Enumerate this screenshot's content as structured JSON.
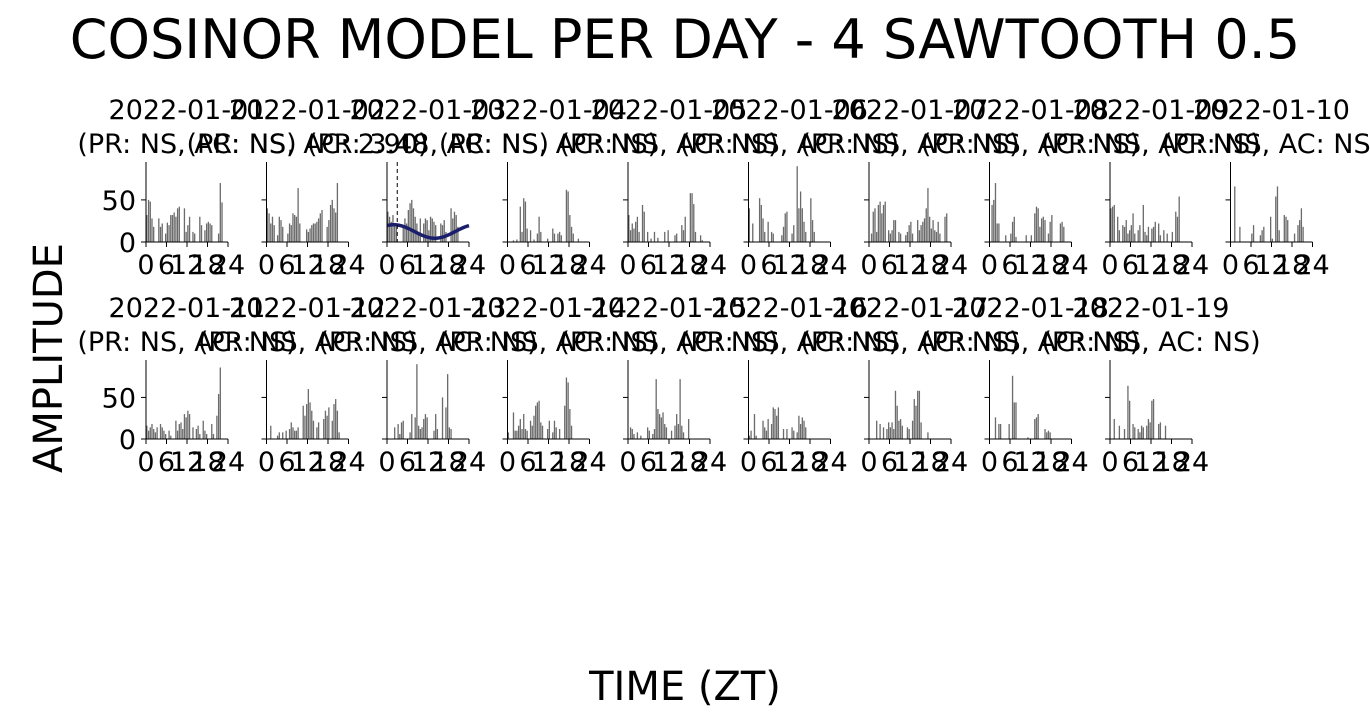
{
  "title": "COSINOR MODEL PER DAY - 4 SAWTOOTH 0.5",
  "xlabel": "TIME (ZT)",
  "ylabel": "AMPLITUDE",
  "colors": {
    "bars": "#6b6b6b",
    "fit": "#1b1f6b",
    "axis": "#000000"
  },
  "chart_data": {
    "type": "bar",
    "x_ticks": [
      "0",
      "6",
      "12",
      "18",
      "24"
    ],
    "y_ticks": [
      "0",
      "50"
    ],
    "xlim": [
      0,
      24
    ],
    "ylim": [
      0,
      95
    ],
    "bins_per_day": 48,
    "panels": [
      {
        "date": "2022-01-01",
        "subtitle": "(PR: NS, AC: NS)",
        "values": [
          32,
          50,
          48,
          28,
          18,
          0,
          0,
          28,
          18,
          22,
          0,
          10,
          23,
          20,
          32,
          32,
          35,
          30,
          40,
          42,
          0,
          0,
          40,
          12,
          20,
          30,
          0,
          12,
          10,
          0,
          0,
          30,
          20,
          0,
          14,
          22,
          24,
          22,
          20,
          0,
          0,
          0,
          10,
          70,
          47,
          0,
          0,
          0
        ]
      },
      {
        "date": "2022-01-02",
        "subtitle": "(PR: NS, AC: 2.90)",
        "values": [
          40,
          34,
          22,
          30,
          20,
          0,
          8,
          30,
          26,
          18,
          0,
          0,
          10,
          22,
          20,
          34,
          32,
          30,
          64,
          22,
          0,
          0,
          0,
          15,
          12,
          16,
          20,
          22,
          22,
          24,
          28,
          34,
          38,
          0,
          0,
          18,
          26,
          44,
          50,
          40,
          35,
          70,
          0,
          0,
          0,
          0,
          0,
          0
        ]
      },
      {
        "date": "2022-01-03",
        "subtitle": "(PR: 3.48, AC: NS)",
        "values": [
          36,
          30,
          24,
          32,
          22,
          18,
          0,
          0,
          0,
          20,
          28,
          22,
          38,
          46,
          50,
          40,
          30,
          22,
          10,
          28,
          0,
          22,
          28,
          26,
          14,
          30,
          28,
          24,
          20,
          0,
          0,
          22,
          20,
          26,
          12,
          0,
          0,
          40,
          28,
          36,
          32,
          18,
          0,
          0,
          0,
          0,
          0,
          0
        ],
        "fit": {
          "mesor": 12.5,
          "amplitude": 8,
          "acrophase": 2
        },
        "marker_x": 3
      },
      {
        "date": "2022-01-04",
        "subtitle": "(PR: NS, AC: NS)",
        "values": [
          0,
          0,
          0,
          2,
          0,
          3,
          0,
          42,
          12,
          52,
          48,
          16,
          0,
          14,
          0,
          3,
          0,
          10,
          30,
          12,
          0,
          0,
          0,
          4,
          0,
          0,
          16,
          10,
          0,
          10,
          12,
          8,
          0,
          0,
          62,
          60,
          32,
          18,
          10,
          0,
          0,
          4,
          0,
          0,
          0,
          0,
          0,
          0
        ]
      },
      {
        "date": "2022-01-05",
        "subtitle": "(PR: NS, AC: NS)",
        "values": [
          32,
          14,
          22,
          16,
          24,
          30,
          12,
          0,
          44,
          36,
          0,
          12,
          0,
          4,
          0,
          12,
          0,
          5,
          0,
          0,
          0,
          12,
          0,
          14,
          0,
          0,
          0,
          8,
          10,
          0,
          0,
          20,
          14,
          30,
          0,
          0,
          58,
          58,
          45,
          12,
          0,
          0,
          8,
          2,
          0,
          0,
          0,
          0
        ]
      },
      {
        "date": "2022-01-06",
        "subtitle": "(PR: NS, AC: NS)",
        "values": [
          40,
          0,
          22,
          0,
          0,
          0,
          52,
          44,
          28,
          12,
          0,
          24,
          0,
          12,
          10,
          0,
          0,
          0,
          0,
          8,
          18,
          34,
          36,
          0,
          0,
          10,
          20,
          0,
          90,
          40,
          60,
          40,
          24,
          12,
          0,
          0,
          52,
          26,
          12,
          0,
          0,
          0,
          0,
          0,
          0,
          0,
          0,
          0
        ]
      },
      {
        "date": "2022-01-07",
        "subtitle": "(PR: NS, AC: NS)",
        "values": [
          0,
          10,
          36,
          40,
          12,
          44,
          48,
          34,
          44,
          48,
          0,
          14,
          10,
          14,
          26,
          26,
          0,
          12,
          10,
          0,
          0,
          8,
          12,
          20,
          24,
          10,
          0,
          0,
          26,
          14,
          20,
          24,
          28,
          40,
          64,
          30,
          16,
          26,
          14,
          12,
          24,
          10,
          0,
          0,
          30,
          34,
          0,
          0
        ]
      },
      {
        "date": "2022-01-08",
        "subtitle": "(PR: NS, AC: NS)",
        "values": [
          0,
          44,
          50,
          70,
          22,
          22,
          0,
          0,
          0,
          8,
          0,
          0,
          10,
          24,
          30,
          6,
          0,
          0,
          0,
          0,
          0,
          8,
          0,
          0,
          8,
          0,
          34,
          42,
          40,
          18,
          28,
          30,
          26,
          0,
          10,
          24,
          32,
          0,
          0,
          0,
          0,
          22,
          24,
          18,
          0,
          0,
          0,
          0
        ]
      },
      {
        "date": "2022-01-09",
        "subtitle": "(PR: NS, AC: NS)",
        "values": [
          40,
          42,
          44,
          0,
          30,
          14,
          0,
          20,
          18,
          26,
          10,
          14,
          20,
          34,
          10,
          0,
          14,
          20,
          0,
          44,
          12,
          8,
          18,
          0,
          16,
          18,
          24,
          0,
          22,
          8,
          0,
          14,
          0,
          10,
          0,
          0,
          12,
          0,
          36,
          30,
          54,
          0,
          0,
          0,
          0,
          0,
          0,
          0
        ]
      },
      {
        "date": "2022-01-10",
        "subtitle": "(PR: NS, AC: NS)",
        "values": [
          0,
          0,
          66,
          0,
          0,
          18,
          0,
          0,
          0,
          0,
          0,
          0,
          10,
          20,
          0,
          0,
          0,
          8,
          14,
          18,
          0,
          0,
          0,
          30,
          4,
          0,
          54,
          66,
          14,
          0,
          0,
          32,
          30,
          26,
          0,
          0,
          0,
          10,
          0,
          20,
          26,
          40,
          18,
          0,
          0,
          0,
          0,
          0
        ]
      },
      {
        "date": "2022-01-11",
        "subtitle": "(PR: NS, AC: NS)",
        "values": [
          16,
          10,
          14,
          18,
          12,
          8,
          14,
          0,
          18,
          14,
          10,
          6,
          0,
          10,
          4,
          0,
          0,
          22,
          10,
          18,
          20,
          12,
          30,
          26,
          34,
          30,
          0,
          14,
          0,
          12,
          16,
          6,
          0,
          22,
          10,
          6,
          0,
          0,
          18,
          6,
          0,
          28,
          54,
          86,
          0,
          0,
          0,
          0
        ]
      },
      {
        "date": "2022-01-12",
        "subtitle": "(PR: NS, AC: NS)",
        "values": [
          0,
          0,
          16,
          0,
          0,
          0,
          4,
          8,
          0,
          8,
          0,
          10,
          0,
          12,
          20,
          14,
          10,
          10,
          14,
          0,
          0,
          40,
          28,
          42,
          60,
          44,
          34,
          22,
          0,
          14,
          20,
          0,
          0,
          24,
          34,
          28,
          38,
          0,
          22,
          42,
          48,
          34,
          8,
          0,
          0,
          0,
          0,
          0
        ]
      },
      {
        "date": "2022-01-13",
        "subtitle": "(PR: NS, AC: NS)",
        "values": [
          0,
          0,
          0,
          0,
          14,
          0,
          18,
          6,
          20,
          22,
          0,
          0,
          0,
          8,
          30,
          0,
          26,
          90,
          16,
          12,
          14,
          24,
          30,
          26,
          0,
          0,
          0,
          10,
          30,
          12,
          0,
          0,
          50,
          0,
          38,
          78,
          14,
          12,
          0,
          0,
          0,
          0,
          0,
          0,
          0,
          0,
          0,
          0
        ]
      },
      {
        "date": "2022-01-14",
        "subtitle": "(PR: NS, AC: NS)",
        "values": [
          8,
          0,
          0,
          32,
          10,
          10,
          16,
          24,
          12,
          30,
          12,
          10,
          0,
          22,
          16,
          28,
          40,
          44,
          46,
          20,
          16,
          0,
          0,
          12,
          22,
          0,
          8,
          22,
          14,
          0,
          12,
          0,
          0,
          40,
          74,
          68,
          36,
          16,
          0,
          0,
          0,
          0,
          0,
          0,
          0,
          0,
          0,
          0
        ]
      },
      {
        "date": "2022-01-15",
        "subtitle": "(PR: NS, AC: NS)",
        "values": [
          0,
          14,
          12,
          6,
          0,
          8,
          0,
          4,
          0,
          0,
          0,
          14,
          10,
          0,
          6,
          12,
          72,
          36,
          30,
          26,
          32,
          18,
          14,
          0,
          0,
          10,
          0,
          16,
          30,
          18,
          72,
          16,
          8,
          0,
          0,
          24,
          0,
          0,
          0,
          0,
          0,
          0,
          0,
          0,
          0,
          0,
          0,
          0
        ]
      },
      {
        "date": "2022-01-16",
        "subtitle": "(PR: NS, AC: NS)",
        "values": [
          4,
          10,
          0,
          30,
          4,
          0,
          0,
          0,
          22,
          14,
          10,
          24,
          0,
          18,
          38,
          36,
          28,
          38,
          0,
          0,
          12,
          0,
          12,
          0,
          0,
          14,
          10,
          0,
          8,
          28,
          18,
          26,
          22,
          14,
          0,
          0,
          0,
          0,
          0,
          0,
          0,
          0,
          0,
          0,
          0,
          0,
          0,
          0
        ]
      },
      {
        "date": "2022-01-17",
        "subtitle": "(PR: NS, AC: NS)",
        "values": [
          0,
          0,
          0,
          0,
          22,
          0,
          18,
          0,
          14,
          0,
          12,
          20,
          14,
          20,
          12,
          58,
          40,
          22,
          24,
          16,
          0,
          0,
          14,
          12,
          0,
          22,
          48,
          40,
          58,
          58,
          20,
          0,
          0,
          0,
          8,
          0,
          0,
          0,
          0,
          0,
          0,
          0,
          0,
          0,
          0,
          0,
          0,
          0
        ]
      },
      {
        "date": "2022-01-18",
        "subtitle": "(PR: NS, AC: NS)",
        "values": [
          0,
          0,
          0,
          26,
          0,
          18,
          18,
          0,
          0,
          0,
          0,
          18,
          0,
          76,
          44,
          44,
          0,
          0,
          0,
          0,
          0,
          0,
          2,
          0,
          0,
          0,
          24,
          26,
          30,
          0,
          0,
          0,
          12,
          8,
          10,
          8,
          0,
          0,
          0,
          0,
          0,
          0,
          0,
          0,
          0,
          0,
          0,
          0
        ]
      },
      {
        "date": "2022-01-19",
        "subtitle": "(PR: NS, AC: NS)",
        "values": [
          0,
          0,
          24,
          0,
          0,
          16,
          0,
          0,
          12,
          0,
          64,
          46,
          0,
          18,
          14,
          0,
          12,
          8,
          16,
          14,
          0,
          16,
          24,
          20,
          46,
          48,
          0,
          0,
          18,
          20,
          0,
          0,
          16,
          0,
          0,
          0,
          0,
          0,
          0,
          0,
          0,
          0,
          0,
          0,
          0,
          0,
          0,
          0
        ]
      }
    ]
  }
}
